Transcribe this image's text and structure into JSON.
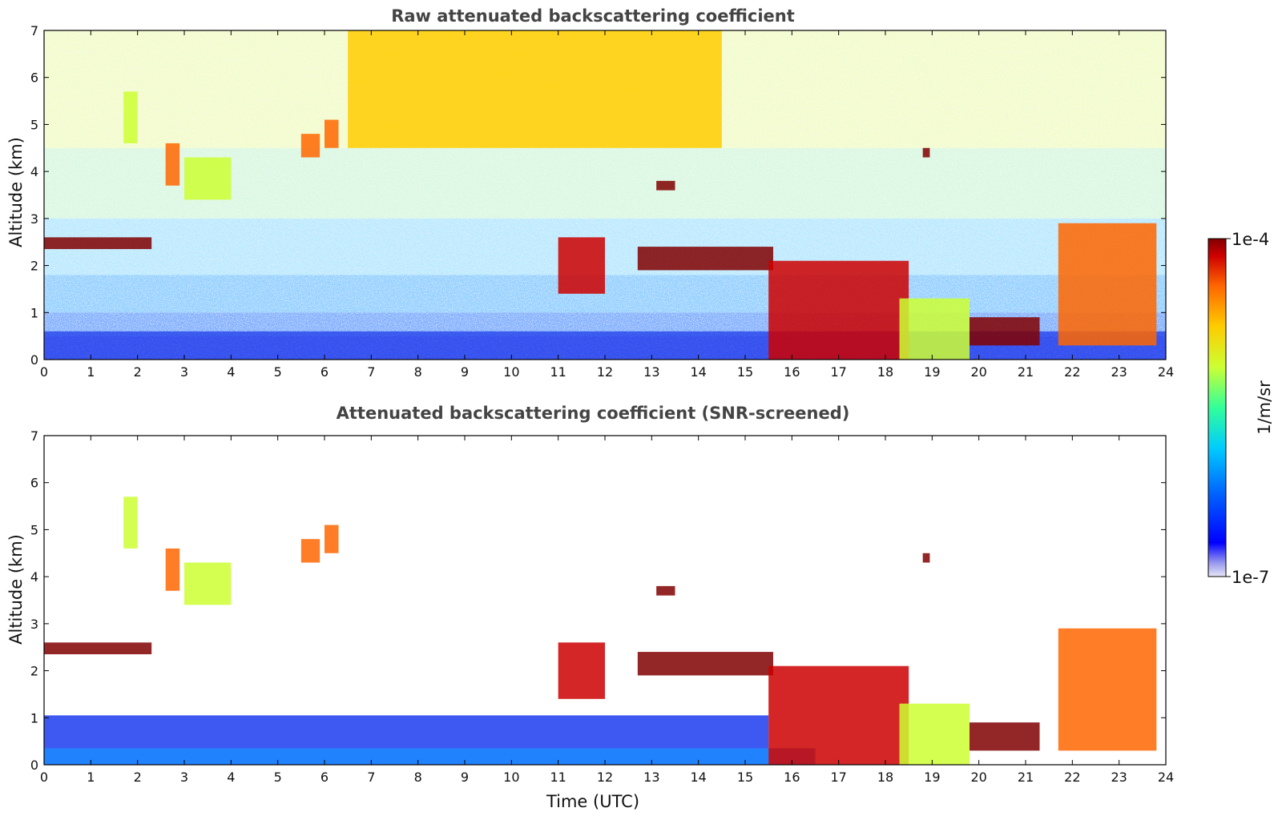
{
  "chart_data": [
    {
      "type": "heatmap",
      "title": "Raw attenuated backscattering coefficient",
      "xlabel": "",
      "ylabel": "Altitude (km)",
      "xlim": [
        0,
        24
      ],
      "ylim": [
        0,
        7
      ],
      "xticks": [
        "0",
        "1",
        "2",
        "3",
        "4",
        "5",
        "6",
        "7",
        "8",
        "9",
        "10",
        "11",
        "12",
        "13",
        "14",
        "15",
        "16",
        "17",
        "18",
        "19",
        "20",
        "21",
        "22",
        "23",
        "24"
      ],
      "yticks": [
        "0",
        "1",
        "2",
        "3",
        "4",
        "5",
        "6",
        "7"
      ],
      "layers": [
        {
          "t0": 0.0,
          "t1": 2.3,
          "z0": 2.35,
          "z1": 2.6,
          "level": 1.0
        },
        {
          "t0": 1.7,
          "t1": 2.0,
          "z0": 4.6,
          "z1": 5.7,
          "level": 0.6
        },
        {
          "t0": 2.6,
          "t1": 2.9,
          "z0": 3.7,
          "z1": 4.6,
          "level": 0.75
        },
        {
          "t0": 3.0,
          "t1": 4.0,
          "z0": 3.4,
          "z1": 4.3,
          "level": 0.55
        },
        {
          "t0": 5.5,
          "t1": 5.9,
          "z0": 4.3,
          "z1": 4.8,
          "level": 0.8
        },
        {
          "t0": 6.0,
          "t1": 6.3,
          "z0": 4.5,
          "z1": 5.1,
          "level": 0.75
        },
        {
          "t0": 11.0,
          "t1": 12.0,
          "z0": 1.4,
          "z1": 2.6,
          "level": 0.9
        },
        {
          "t0": 12.7,
          "t1": 15.6,
          "z0": 1.9,
          "z1": 2.4,
          "level": 0.95
        },
        {
          "t0": 13.1,
          "t1": 13.5,
          "z0": 3.6,
          "z1": 3.8,
          "level": 1.0
        },
        {
          "t0": 15.5,
          "t1": 18.5,
          "z0": 0.0,
          "z1": 2.1,
          "level": 0.85
        },
        {
          "t0": 18.3,
          "t1": 19.8,
          "z0": 0.0,
          "z1": 1.3,
          "level": 0.6
        },
        {
          "t0": 18.8,
          "t1": 18.95,
          "z0": 4.3,
          "z1": 4.5,
          "level": 1.0
        },
        {
          "t0": 19.8,
          "t1": 21.3,
          "z0": 0.3,
          "z1": 0.9,
          "level": 0.95
        },
        {
          "t0": 21.7,
          "t1": 23.8,
          "z0": 0.3,
          "z1": 2.9,
          "level": 0.75
        },
        {
          "t0": 6.5,
          "t1": 14.5,
          "z0": 4.5,
          "z1": 7.0,
          "level": 0.7
        }
      ]
    },
    {
      "type": "heatmap",
      "title": "Attenuated backscattering coefficient (SNR-screened)",
      "xlabel": "Time (UTC)",
      "ylabel": "Altitude (km)",
      "xlim": [
        0,
        24
      ],
      "ylim": [
        0,
        7
      ],
      "xticks": [
        "0",
        "1",
        "2",
        "3",
        "4",
        "5",
        "6",
        "7",
        "8",
        "9",
        "10",
        "11",
        "12",
        "13",
        "14",
        "15",
        "16",
        "17",
        "18",
        "19",
        "20",
        "21",
        "22",
        "23",
        "24"
      ],
      "yticks": [
        "0",
        "1",
        "2",
        "3",
        "4",
        "5",
        "6",
        "7"
      ],
      "layers": [
        {
          "t0": 0.0,
          "t1": 2.3,
          "z0": 2.35,
          "z1": 2.6,
          "level": 1.0
        },
        {
          "t0": 1.7,
          "t1": 2.0,
          "z0": 4.6,
          "z1": 5.7,
          "level": 0.6
        },
        {
          "t0": 2.6,
          "t1": 2.9,
          "z0": 3.7,
          "z1": 4.6,
          "level": 0.75
        },
        {
          "t0": 3.0,
          "t1": 4.0,
          "z0": 3.4,
          "z1": 4.3,
          "level": 0.55
        },
        {
          "t0": 5.5,
          "t1": 5.9,
          "z0": 4.3,
          "z1": 4.8,
          "level": 0.8
        },
        {
          "t0": 6.0,
          "t1": 6.3,
          "z0": 4.5,
          "z1": 5.1,
          "level": 0.75
        },
        {
          "t0": 11.0,
          "t1": 12.0,
          "z0": 1.4,
          "z1": 2.6,
          "level": 0.9
        },
        {
          "t0": 12.7,
          "t1": 15.6,
          "z0": 1.9,
          "z1": 2.4,
          "level": 0.95
        },
        {
          "t0": 13.1,
          "t1": 13.5,
          "z0": 3.6,
          "z1": 3.8,
          "level": 1.0
        },
        {
          "t0": 15.5,
          "t1": 18.5,
          "z0": 0.0,
          "z1": 2.1,
          "level": 0.85
        },
        {
          "t0": 18.3,
          "t1": 19.8,
          "z0": 0.0,
          "z1": 1.3,
          "level": 0.6
        },
        {
          "t0": 18.8,
          "t1": 18.95,
          "z0": 4.3,
          "z1": 4.5,
          "level": 1.0
        },
        {
          "t0": 19.8,
          "t1": 21.3,
          "z0": 0.3,
          "z1": 0.9,
          "level": 0.95
        },
        {
          "t0": 21.7,
          "t1": 23.8,
          "z0": 0.3,
          "z1": 2.9,
          "level": 0.75
        }
      ]
    }
  ],
  "colorbar": {
    "label": "1/m/sr",
    "max_label": "1e-4",
    "min_label": "1e-7",
    "colors": [
      "#e6e6f5",
      "#9999ee",
      "#0000ff",
      "#0066ff",
      "#00ccff",
      "#33ff99",
      "#ccff33",
      "#ffcc00",
      "#ff6600",
      "#cc0000",
      "#800000"
    ]
  }
}
